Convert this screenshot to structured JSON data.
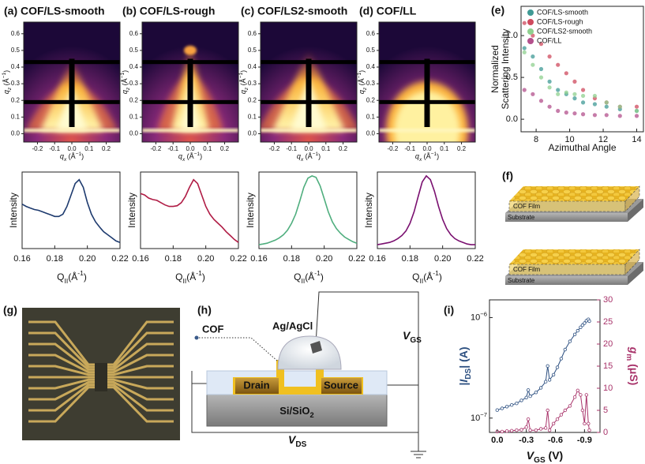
{
  "figure": {
    "giwaxs": {
      "qx_label": [
        "q",
        "x",
        " (Å",
        "−1",
        ")"
      ],
      "qz_label": [
        "q",
        "z",
        " (Å",
        "−1",
        ")"
      ],
      "qx_lim": [
        -0.28,
        0.28
      ],
      "qz_lim": [
        -0.05,
        0.67
      ],
      "qx_ticks": [
        -0.2,
        -0.1,
        {
          "value": 0,
          "label": "0.0"
        },
        0.1,
        0.2
      ],
      "qz_ticks": [
        {
          "value": 0,
          "label": "0.0"
        },
        0.1,
        0.2,
        0.3,
        0.4,
        0.5,
        0.6
      ]
    },
    "profile": {
      "x_label": [
        "Q",
        "II",
        "(Å",
        "-1",
        ")"
      ],
      "y_label": "Intensity",
      "xlim": [
        0.16,
        0.22
      ],
      "ylim": [
        0,
        1
      ],
      "xticks": [
        0.16,
        0.18,
        {
          "value": 0.2,
          "label": "0.20"
        },
        0.22
      ],
      "x": [
        0.16,
        0.1625,
        0.165,
        0.1675,
        0.17,
        0.1725,
        0.175,
        0.1775,
        0.18,
        0.1825,
        0.185,
        0.1875,
        0.19,
        0.1925,
        0.195,
        0.1975,
        0.2,
        0.2025,
        0.205,
        0.2075,
        0.21,
        0.2125,
        0.215,
        0.2175,
        0.22
      ]
    },
    "panels": [
      {
        "title": "(a) COF/LS-smooth",
        "color": "#1d3a6e",
        "values": [
          0.58,
          0.55,
          0.53,
          0.51,
          0.5,
          0.48,
          0.46,
          0.44,
          0.42,
          0.42,
          0.45,
          0.55,
          0.7,
          0.85,
          0.9,
          0.8,
          0.6,
          0.45,
          0.35,
          0.28,
          0.22,
          0.18,
          0.14,
          0.1,
          0.08
        ]
      },
      {
        "title": "(b) COF/LS-rough",
        "color": "#b01c45",
        "values": [
          0.72,
          0.7,
          0.66,
          0.64,
          0.63,
          0.6,
          0.57,
          0.55,
          0.55,
          0.56,
          0.6,
          0.68,
          0.8,
          0.9,
          0.85,
          0.7,
          0.55,
          0.45,
          0.38,
          0.33,
          0.28,
          0.22,
          0.17,
          0.12,
          0.08
        ]
      },
      {
        "title": "(c) COF/LS2-smooth",
        "color": "#4fae7e",
        "values": [
          0.05,
          0.06,
          0.07,
          0.09,
          0.11,
          0.14,
          0.18,
          0.24,
          0.33,
          0.45,
          0.62,
          0.8,
          0.92,
          0.95,
          0.93,
          0.82,
          0.65,
          0.48,
          0.35,
          0.26,
          0.2,
          0.15,
          0.12,
          0.09,
          0.07
        ]
      },
      {
        "title": "(d) COF/LL",
        "color": "#7a1070",
        "values": [
          0.05,
          0.06,
          0.07,
          0.08,
          0.1,
          0.13,
          0.17,
          0.23,
          0.33,
          0.48,
          0.68,
          0.87,
          0.95,
          0.9,
          0.75,
          0.55,
          0.38,
          0.26,
          0.18,
          0.13,
          0.1,
          0.08,
          0.06,
          0.05,
          0.05
        ]
      }
    ],
    "scatter": {
      "letter": "(e)",
      "x_label": "Azimuthal Angle",
      "y_label": [
        "Normalized",
        "Scattering Intensity"
      ],
      "xlim": [
        7.1,
        14.4
      ],
      "ylim": [
        -0.15,
        1.35
      ],
      "xticks": [
        8,
        10,
        12,
        14
      ],
      "yticks": [
        {
          "value": 0,
          "label": "0.0"
        },
        0.5,
        {
          "value": 1,
          "label": "1.0"
        }
      ],
      "x": [
        7.3,
        7.8,
        8.3,
        8.8,
        9.3,
        9.8,
        10.3,
        10.8,
        11.5,
        12.2,
        13,
        14
      ],
      "series": [
        {
          "name": "COF/LS-smooth",
          "color": "#3f9a95",
          "values": [
            0.85,
            0.75,
            0.6,
            0.45,
            0.35,
            0.3,
            0.25,
            0.2,
            0.18,
            0.15,
            0.12,
            0.1
          ]
        },
        {
          "name": "COF/LS-rough",
          "color": "#cf4a5e",
          "values": [
            1.15,
            1.0,
            0.9,
            0.75,
            0.65,
            0.55,
            0.45,
            0.35,
            0.25,
            0.2,
            0.15,
            0.15
          ]
        },
        {
          "name": "COF/LS2-smooth",
          "color": "#8fd08f",
          "values": [
            0.8,
            0.65,
            0.5,
            0.38,
            0.3,
            0.32,
            0.3,
            0.28,
            0.28,
            0.2,
            0.15,
            0.1
          ]
        },
        {
          "name": "COF/LL",
          "color": "#b3508c",
          "values": [
            0.35,
            0.3,
            0.22,
            0.15,
            0.1,
            0.08,
            0.07,
            0.06,
            0.05,
            0.05,
            0.04,
            0.04
          ]
        }
      ]
    },
    "films": {
      "letter": "(f)",
      "items": [
        {
          "film_label": "COF Film",
          "substrate_label": "Substrate"
        },
        {
          "film_label": "COF Film",
          "substrate_label": "Substrate"
        }
      ]
    },
    "photo": {
      "letter": "(g)"
    },
    "schematic": {
      "letter": "(h)",
      "cof": "COF",
      "electrode": "Ag/AgCl",
      "vgs": [
        "V",
        "GS"
      ],
      "drain": "Drain",
      "source": "Source",
      "substrate": [
        "Si/SiO",
        "2"
      ],
      "vds": [
        "V",
        "DS"
      ]
    },
    "transfer": {
      "letter": "(i)",
      "x_label": [
        "V",
        "GS",
        " (V)"
      ],
      "y_label": [
        "|",
        "I",
        "DS",
        "| (A)"
      ],
      "y2_label": [
        "g",
        "m",
        " (μS)"
      ],
      "xlim": [
        0.08,
        -1.06
      ],
      "xticks": [
        {
          "value": 0,
          "label": "0.0"
        },
        -0.3,
        -0.6,
        -0.9
      ],
      "ylim": [
        7.2e-08,
        1.5e-06
      ],
      "log_y": true,
      "yticks": [
        {
          "value": 1e-07,
          "label": "10",
          "exp": "−7"
        },
        {
          "value": 1e-06,
          "label": "10",
          "exp": "−6"
        }
      ],
      "y2lim": [
        0,
        30
      ],
      "y2ticks": [
        0,
        5,
        10,
        15,
        20,
        25,
        30
      ],
      "x": [
        0,
        -0.05,
        -0.1,
        -0.15,
        -0.2,
        -0.25,
        -0.3,
        -0.32,
        -0.34,
        -0.4,
        -0.45,
        -0.5,
        -0.52,
        -0.54,
        -0.58,
        -0.62,
        -0.66,
        -0.7,
        -0.75,
        -0.8,
        -0.83,
        -0.86,
        -0.88,
        -0.9,
        -0.92,
        -0.94,
        -0.95
      ],
      "current": {
        "color": "#2c4f80",
        "values": [
          1.2e-07,
          1.25e-07,
          1.3e-07,
          1.35e-07,
          1.4e-07,
          1.5e-07,
          1.6e-07,
          1.9e-07,
          1.65e-07,
          1.8e-07,
          2e-07,
          2.3e-07,
          3.3e-07,
          2.4e-07,
          2.7e-07,
          3.2e-07,
          3.9e-07,
          4.8e-07,
          5.8e-07,
          6.8e-07,
          7.4e-07,
          8e-07,
          8.4e-07,
          8.8e-07,
          9.3e-07,
          9.6e-07,
          9.2e-07
        ]
      },
      "gm": {
        "color": "#a8336a",
        "values": [
          0.2,
          0.2,
          0.3,
          0.4,
          0.5,
          0.6,
          1.2,
          3,
          0.5,
          0.5,
          0.8,
          1,
          5,
          0.5,
          2,
          3,
          4,
          5,
          6,
          8,
          9.5,
          8.5,
          5,
          2,
          8.5,
          2,
          0.5
        ]
      }
    }
  }
}
